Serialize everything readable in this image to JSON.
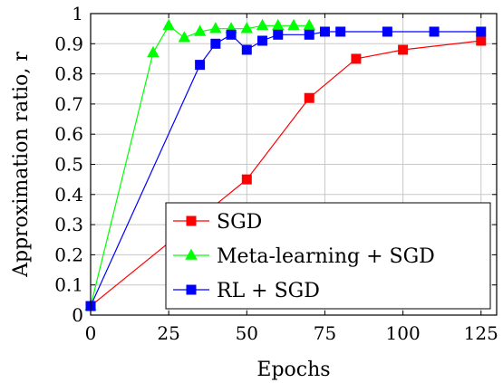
{
  "chart_data": {
    "type": "line",
    "xlabel": "Epochs",
    "ylabel": "Approximation ratio, r",
    "xlim": [
      0,
      130
    ],
    "ylim": [
      0,
      1
    ],
    "xticks": [
      "0",
      "25",
      "50",
      "75",
      "100",
      "125"
    ],
    "yticks": [
      "0",
      "0.1",
      "0.2",
      "0.3",
      "0.4",
      "0.5",
      "0.6",
      "0.7",
      "0.8",
      "0.9",
      "1"
    ],
    "grid": true,
    "legend_position": "bottom-right",
    "series": [
      {
        "name": "SGD",
        "color": "#ff0000",
        "marker": "square",
        "points": [
          [
            0,
            0.03
          ],
          [
            50,
            0.45
          ],
          [
            70,
            0.72
          ],
          [
            85,
            0.85
          ],
          [
            100,
            0.88
          ],
          [
            125,
            0.91
          ]
        ]
      },
      {
        "name": "Meta-learning + SGD",
        "color": "#00ff00",
        "marker": "triangle",
        "points": [
          [
            0,
            0.03
          ],
          [
            20,
            0.87
          ],
          [
            25,
            0.96
          ],
          [
            30,
            0.92
          ],
          [
            35,
            0.94
          ],
          [
            40,
            0.95
          ],
          [
            45,
            0.95
          ],
          [
            50,
            0.95
          ],
          [
            55,
            0.96
          ],
          [
            60,
            0.96
          ],
          [
            65,
            0.96
          ],
          [
            70,
            0.96
          ]
        ]
      },
      {
        "name": "RL + SGD",
        "color": "#0000ff",
        "marker": "square",
        "points": [
          [
            0,
            0.03
          ],
          [
            35,
            0.83
          ],
          [
            40,
            0.9
          ],
          [
            45,
            0.93
          ],
          [
            50,
            0.88
          ],
          [
            55,
            0.91
          ],
          [
            60,
            0.93
          ],
          [
            70,
            0.93
          ],
          [
            75,
            0.94
          ],
          [
            80,
            0.94
          ],
          [
            95,
            0.94
          ],
          [
            110,
            0.94
          ],
          [
            125,
            0.94
          ]
        ]
      }
    ]
  }
}
